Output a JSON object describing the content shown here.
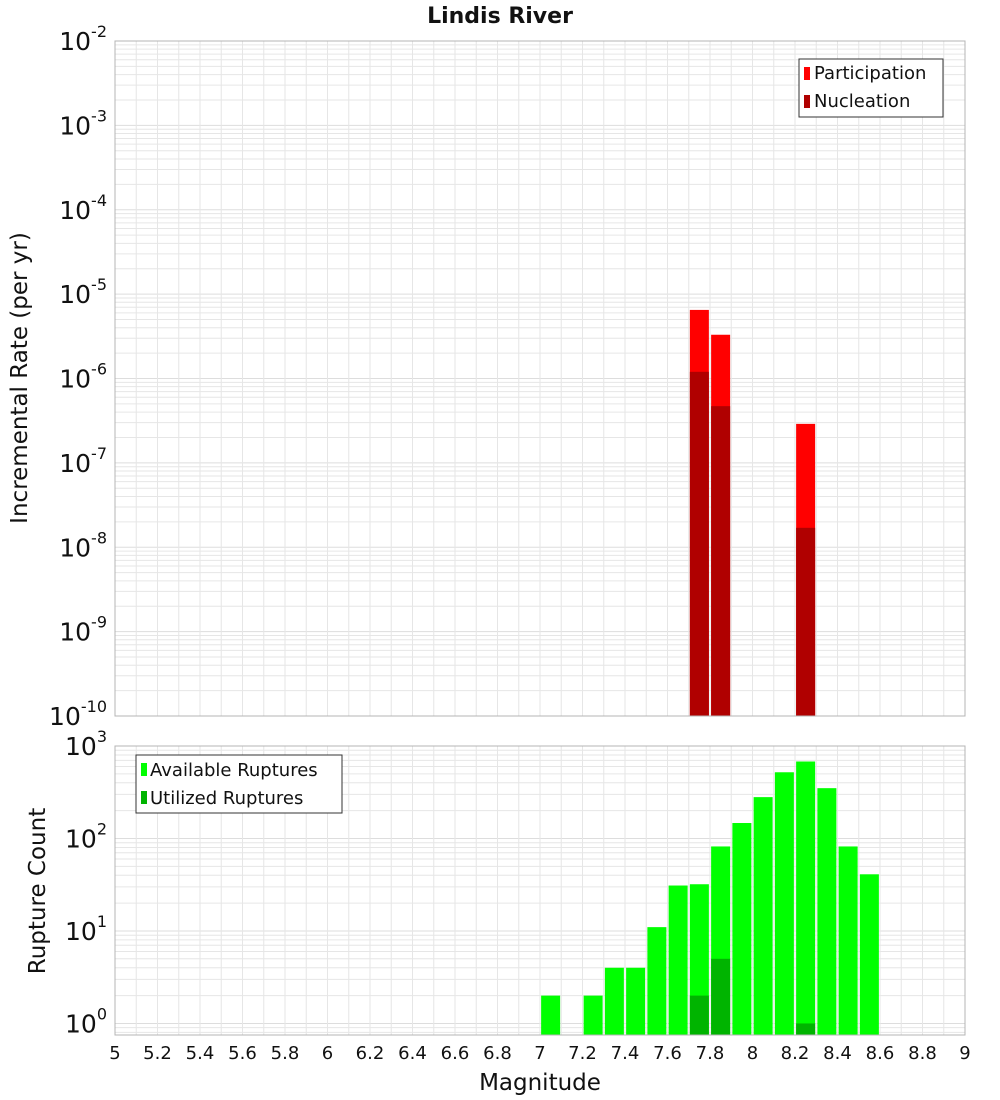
{
  "title": "Lindis River",
  "xlabel": "Magnitude",
  "colors": {
    "participation": "#ff0000",
    "nucleation": "#b00000",
    "available": "#00ff00",
    "utilized": "#00b400",
    "grid": "#e6e6e6",
    "frame": "#b4b4b4"
  },
  "chart_data": [
    {
      "type": "bar",
      "ylabel": "Incremental Rate (per yr)",
      "yscale": "log",
      "ylim": [
        1e-10,
        0.01
      ],
      "xlim": [
        5,
        9
      ],
      "legend": {
        "position": "top-right",
        "entries": [
          "Participation",
          "Nucleation"
        ]
      },
      "grid": true,
      "yticks": [
        {
          "base": "10",
          "exp": "-10"
        },
        {
          "base": "10",
          "exp": "-9"
        },
        {
          "base": "10",
          "exp": "-8"
        },
        {
          "base": "10",
          "exp": "-7"
        },
        {
          "base": "10",
          "exp": "-6"
        },
        {
          "base": "10",
          "exp": "-5"
        },
        {
          "base": "10",
          "exp": "-4"
        },
        {
          "base": "10",
          "exp": "-3"
        },
        {
          "base": "10",
          "exp": "-2"
        }
      ],
      "series": [
        {
          "name": "Participation",
          "x": [
            7.75,
            7.85,
            8.25
          ],
          "values": [
            6.5e-06,
            3.3e-06,
            2.9e-07
          ]
        },
        {
          "name": "Nucleation",
          "x": [
            7.75,
            7.85,
            8.25
          ],
          "values": [
            1.2e-06,
            4.7e-07,
            1.7e-08
          ]
        }
      ]
    },
    {
      "type": "bar",
      "ylabel": "Rupture Count",
      "yscale": "log",
      "ylim": [
        0.75,
        1000
      ],
      "xlim": [
        5,
        9
      ],
      "legend": {
        "position": "top-left",
        "entries": [
          "Available Ruptures",
          "Utilized Ruptures"
        ]
      },
      "grid": true,
      "yticks": [
        {
          "base": "10",
          "exp": "0"
        },
        {
          "base": "10",
          "exp": "1"
        },
        {
          "base": "10",
          "exp": "2"
        },
        {
          "base": "10",
          "exp": "3"
        }
      ],
      "xticks": [
        "5",
        "5.2",
        "5.4",
        "5.6",
        "5.8",
        "6",
        "6.2",
        "6.4",
        "6.6",
        "6.8",
        "7",
        "7.2",
        "7.4",
        "7.6",
        "7.8",
        "8",
        "8.2",
        "8.4",
        "8.6",
        "8.8",
        "9"
      ],
      "series": [
        {
          "name": "Available Ruptures",
          "x": [
            7.05,
            7.25,
            7.35,
            7.45,
            7.55,
            7.65,
            7.75,
            7.85,
            7.95,
            8.05,
            8.15,
            8.25,
            8.35,
            8.45,
            8.55
          ],
          "values": [
            2,
            2,
            4,
            4,
            11,
            31,
            32,
            82,
            147,
            280,
            520,
            680,
            350,
            82,
            41
          ]
        },
        {
          "name": "Utilized Ruptures",
          "x": [
            7.75,
            7.85,
            8.25
          ],
          "values": [
            2,
            5,
            1
          ]
        }
      ]
    }
  ]
}
